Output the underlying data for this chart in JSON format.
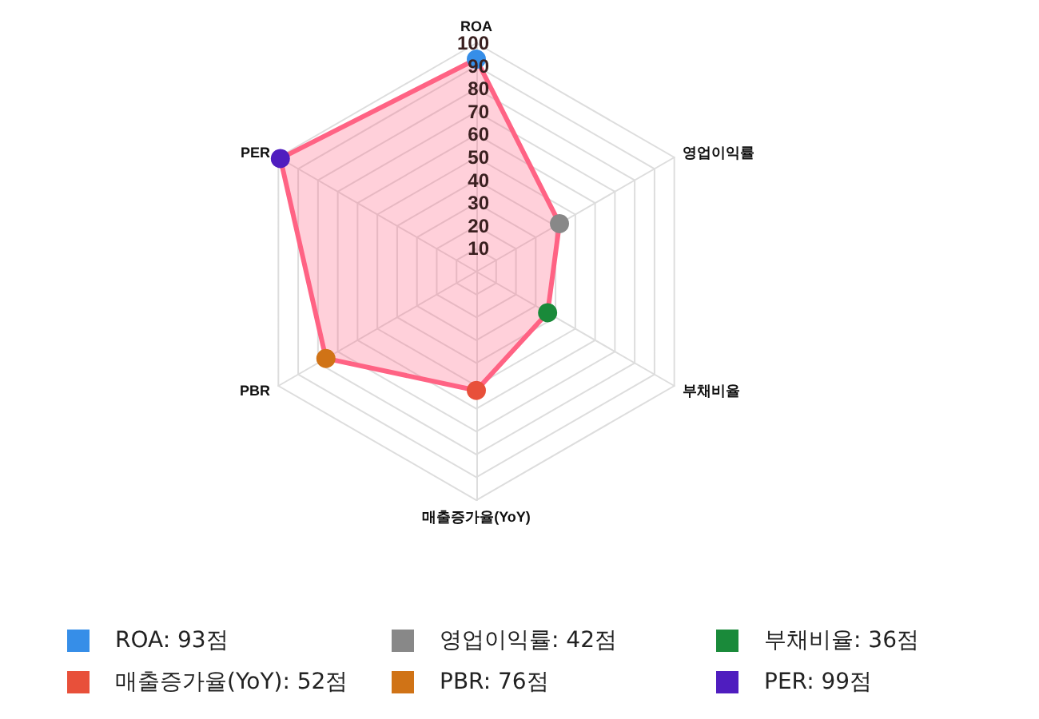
{
  "chart_data": {
    "type": "radar",
    "categories": [
      "ROA",
      "영업이익률",
      "부채비율",
      "매출증가율(YoY)",
      "PBR",
      "PER"
    ],
    "series": [
      {
        "color": "#ff6384",
        "values": [
          93,
          42,
          36,
          52,
          76,
          99
        ],
        "colors": [
          "#368ee8",
          "#888888",
          "#1a8a3a",
          "#e8503a",
          "#d07316",
          "#4f1dbf"
        ]
      }
    ],
    "annotations": [
      "ROA: 93점",
      "영업이익률: 42점",
      "부채비율: 36점",
      "매출증가율(YoY): 52점",
      "PBR: 76점",
      "PER: 99점"
    ],
    "ylim": [
      0,
      100
    ],
    "yticks": [
      10,
      20,
      30,
      40,
      50,
      60,
      70,
      80,
      90,
      100
    ],
    "grid": true,
    "marker": "circle"
  }
}
